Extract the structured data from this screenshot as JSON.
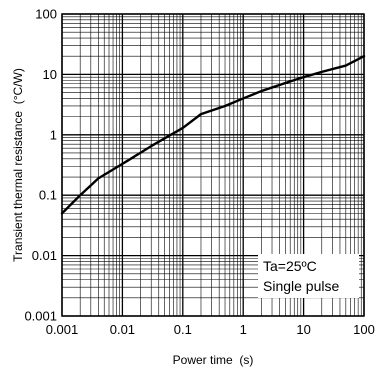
{
  "chart_data": {
    "type": "line",
    "xlabel": "Power time  (s)",
    "ylabel": "Transient thermal resistance  (°C/W)",
    "x_scale": "log",
    "y_scale": "log",
    "xlim": [
      0.001,
      100
    ],
    "ylim": [
      0.001,
      100
    ],
    "x_ticks": [
      {
        "value": 0.001,
        "label": "0.001"
      },
      {
        "value": 0.01,
        "label": "0.01"
      },
      {
        "value": 0.1,
        "label": "0.1"
      },
      {
        "value": 1,
        "label": "1"
      },
      {
        "value": 10,
        "label": "10"
      },
      {
        "value": 100,
        "label": "100"
      }
    ],
    "y_ticks": [
      {
        "value": 0.001,
        "label": "0.001"
      },
      {
        "value": 0.01,
        "label": "0.01"
      },
      {
        "value": 0.1,
        "label": "0.1"
      },
      {
        "value": 1,
        "label": "1"
      },
      {
        "value": 10,
        "label": "10"
      },
      {
        "value": 100,
        "label": "100"
      }
    ],
    "grid": true,
    "annotation": {
      "lines": [
        "Ta=25ºC",
        "Single pulse"
      ],
      "placement": "bottom-right"
    },
    "series": [
      {
        "x": [
          0.001,
          0.002,
          0.004,
          0.01,
          0.03,
          0.1,
          0.2,
          0.5,
          1,
          2,
          5,
          10,
          20,
          50,
          100
        ],
        "y": [
          0.05,
          0.1,
          0.19,
          0.33,
          0.65,
          1.3,
          2.2,
          3.0,
          4.0,
          5.3,
          7.2,
          9.0,
          11.0,
          14.0,
          20.0
        ]
      }
    ]
  },
  "style": {
    "line_color": "#000000",
    "grid_color": "#000000",
    "axis_color": "#000000"
  }
}
